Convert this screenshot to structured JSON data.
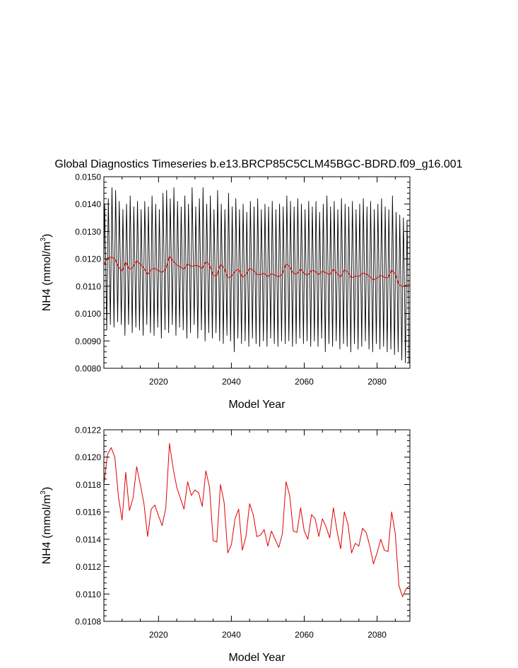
{
  "title": "Global Diagnostics Timeseries b.e13.BRCP85C5CLM45BGC-BDRD.f09_g16.001",
  "colors": {
    "monthly": "#000000",
    "annual": "#e00000",
    "axis": "#000000"
  },
  "chart_data": [
    {
      "type": "line",
      "name": "monthly-and-annual",
      "xlabel": "Model Year",
      "ylabel": {
        "text": "NH4 (mmol/m",
        "sup": "3",
        "close": ")"
      },
      "xlim": [
        2005,
        2089
      ],
      "ylim": [
        0.008,
        0.015
      ],
      "xticks": [
        2020,
        2040,
        2060,
        2080
      ],
      "xtick_labels": [
        "2020",
        "2040",
        "2060",
        "2080"
      ],
      "yticks": [
        0.008,
        0.009,
        0.01,
        0.011,
        0.012,
        0.013,
        0.014,
        0.015
      ],
      "ytick_labels": [
        "0.0080",
        "0.0090",
        "0.0100",
        "0.0110",
        "0.0120",
        "0.0130",
        "0.0140",
        "0.0150"
      ],
      "series": [
        {
          "name": "monthly",
          "color": "#000000",
          "start_year": 2005,
          "annual_max": [
            0.014,
            0.0142,
            0.0146,
            0.0145,
            0.0141,
            0.0138,
            0.014,
            0.0143,
            0.0139,
            0.0141,
            0.0138,
            0.0141,
            0.0139,
            0.0143,
            0.014,
            0.0138,
            0.0144,
            0.0145,
            0.0142,
            0.0146,
            0.0141,
            0.0139,
            0.0143,
            0.014,
            0.0146,
            0.0139,
            0.0142,
            0.0146,
            0.014,
            0.0143,
            0.0138,
            0.0145,
            0.014,
            0.0138,
            0.0144,
            0.0139,
            0.0142,
            0.0138,
            0.014,
            0.0137,
            0.0141,
            0.0139,
            0.0142,
            0.0138,
            0.014,
            0.0139,
            0.0141,
            0.0138,
            0.014,
            0.0139,
            0.0143,
            0.0141,
            0.0139,
            0.0142,
            0.014,
            0.0138,
            0.0141,
            0.0139,
            0.0141,
            0.0137,
            0.014,
            0.0143,
            0.0139,
            0.0141,
            0.0138,
            0.0142,
            0.014,
            0.0139,
            0.0141,
            0.0138,
            0.014,
            0.0142,
            0.0139,
            0.0141,
            0.0138,
            0.014,
            0.0142,
            0.0139,
            0.0138,
            0.0143,
            0.0137,
            0.0136,
            0.0135,
            0.0134
          ],
          "annual_min": [
            0.0094,
            0.0096,
            0.0095,
            0.0097,
            0.0096,
            0.0092,
            0.0096,
            0.0093,
            0.0095,
            0.0094,
            0.0092,
            0.0096,
            0.0093,
            0.0092,
            0.0095,
            0.0091,
            0.0094,
            0.0093,
            0.0096,
            0.0092,
            0.0095,
            0.0094,
            0.0091,
            0.0093,
            0.0096,
            0.0091,
            0.0094,
            0.009,
            0.0093,
            0.0091,
            0.0093,
            0.009,
            0.0089,
            0.0092,
            0.009,
            0.0086,
            0.0091,
            0.0089,
            0.009,
            0.0088,
            0.0091,
            0.0089,
            0.0088,
            0.009,
            0.0088,
            0.0091,
            0.0089,
            0.0088,
            0.009,
            0.0089,
            0.009,
            0.0088,
            0.0089,
            0.0091,
            0.0089,
            0.009,
            0.0088,
            0.009,
            0.0088,
            0.0091,
            0.0086,
            0.0089,
            0.0088,
            0.009,
            0.0087,
            0.0089,
            0.0088,
            0.0086,
            0.0089,
            0.0087,
            0.0088,
            0.009,
            0.0087,
            0.0086,
            0.0089,
            0.0087,
            0.0088,
            0.0086,
            0.0087,
            0.0085,
            0.0086,
            0.0083,
            0.0082,
            0.0082
          ]
        },
        {
          "name": "annual-mean",
          "color": "#e00000",
          "ref": "annual"
        }
      ]
    },
    {
      "type": "line",
      "name": "annual-mean",
      "xlabel": "Model Year",
      "ylabel": {
        "text": "NH4 (mmol/m",
        "sup": "3",
        "close": ")"
      },
      "xlim": [
        2005,
        2089
      ],
      "ylim": [
        0.0108,
        0.0122
      ],
      "xticks": [
        2020,
        2040,
        2060,
        2080
      ],
      "xtick_labels": [
        "2020",
        "2040",
        "2060",
        "2080"
      ],
      "yticks": [
        0.0108,
        0.011,
        0.0112,
        0.0114,
        0.0116,
        0.0118,
        0.012,
        0.0122
      ],
      "ytick_labels": [
        "0.0108",
        "0.0110",
        "0.0112",
        "0.0114",
        "0.0116",
        "0.0118",
        "0.0120",
        "0.0122"
      ],
      "series": [
        {
          "name": "annual",
          "color": "#e00000",
          "x": [
            2005,
            2006,
            2007,
            2008,
            2009,
            2010,
            2011,
            2012,
            2013,
            2014,
            2015,
            2016,
            2017,
            2018,
            2019,
            2020,
            2021,
            2022,
            2023,
            2024,
            2025,
            2026,
            2027,
            2028,
            2029,
            2030,
            2031,
            2032,
            2033,
            2034,
            2035,
            2036,
            2037,
            2038,
            2039,
            2040,
            2041,
            2042,
            2043,
            2044,
            2045,
            2046,
            2047,
            2048,
            2049,
            2050,
            2051,
            2052,
            2053,
            2054,
            2055,
            2056,
            2057,
            2058,
            2059,
            2060,
            2061,
            2062,
            2063,
            2064,
            2065,
            2066,
            2067,
            2068,
            2069,
            2070,
            2071,
            2072,
            2073,
            2074,
            2075,
            2076,
            2077,
            2078,
            2079,
            2080,
            2081,
            2082,
            2083,
            2084,
            2085,
            2086,
            2087,
            2088,
            2089
          ],
          "values": [
            0.0118,
            0.01202,
            0.01207,
            0.012,
            0.01171,
            0.01154,
            0.01189,
            0.01161,
            0.0117,
            0.01193,
            0.0118,
            0.01166,
            0.01142,
            0.01162,
            0.01165,
            0.01157,
            0.0115,
            0.01163,
            0.0121,
            0.01192,
            0.01178,
            0.0117,
            0.01162,
            0.01182,
            0.01172,
            0.01176,
            0.01174,
            0.01164,
            0.0119,
            0.01178,
            0.01139,
            0.01138,
            0.0118,
            0.01167,
            0.0113,
            0.01136,
            0.01155,
            0.01162,
            0.01132,
            0.01142,
            0.01166,
            0.01158,
            0.01142,
            0.01143,
            0.01147,
            0.01135,
            0.01146,
            0.0114,
            0.01134,
            0.01144,
            0.01182,
            0.01172,
            0.01146,
            0.01145,
            0.01163,
            0.01146,
            0.0114,
            0.01158,
            0.01155,
            0.01142,
            0.01155,
            0.01149,
            0.01141,
            0.01163,
            0.01146,
            0.01133,
            0.0116,
            0.01151,
            0.0113,
            0.01137,
            0.01135,
            0.01148,
            0.01145,
            0.01135,
            0.01122,
            0.0113,
            0.0114,
            0.01132,
            0.01131,
            0.0116,
            0.01144,
            0.01106,
            0.01098,
            0.01104,
            0.01106
          ]
        }
      ]
    }
  ]
}
